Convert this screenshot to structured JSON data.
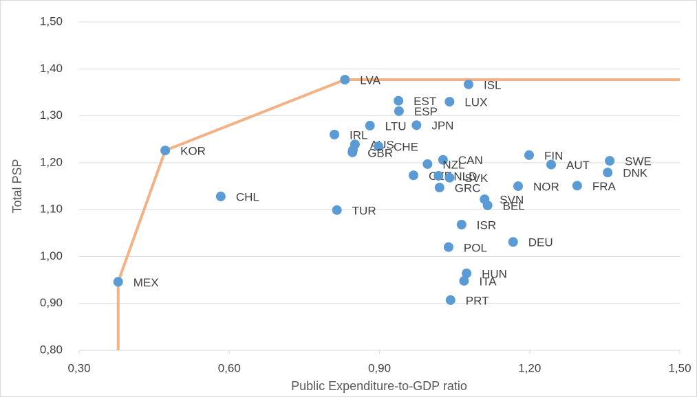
{
  "chart_data": {
    "type": "scatter",
    "x_label": "Public Expenditure-to-GDP ratio",
    "y_label": "Total PSP",
    "xlim": [
      0.3,
      1.5
    ],
    "ylim": [
      0.8,
      1.5
    ],
    "xticks": [
      {
        "value": 0.3,
        "label": "0,30"
      },
      {
        "value": 0.6,
        "label": "0,60"
      },
      {
        "value": 0.9,
        "label": "0,90"
      },
      {
        "value": 1.2,
        "label": "1,20"
      },
      {
        "value": 1.5,
        "label": "1,50"
      }
    ],
    "yticks": [
      {
        "value": 0.8,
        "label": "0,80"
      },
      {
        "value": 0.9,
        "label": "0,90"
      },
      {
        "value": 1.0,
        "label": "1,00"
      },
      {
        "value": 1.1,
        "label": "1,10"
      },
      {
        "value": 1.2,
        "label": "1,20"
      },
      {
        "value": 1.3,
        "label": "1,30"
      },
      {
        "value": 1.4,
        "label": "1,40"
      },
      {
        "value": 1.5,
        "label": "1,50"
      }
    ],
    "grid": true,
    "points": {
      "color": "#5b9bd5",
      "labels": [
        "MEX",
        "KOR",
        "CHL",
        "LVA",
        "ISL",
        "EST",
        "LUX",
        "ESP",
        "LTU",
        "JPN",
        "IRL",
        "AUS",
        "CHE",
        "GBR",
        null,
        "FIN",
        "SWE",
        "AUT",
        "DNK",
        "CAN",
        "NZL",
        "CZE",
        "NLD",
        "SVK",
        "GRC",
        "NOR",
        "FRA",
        "SVN",
        "BEL",
        "TUR",
        "ISR",
        "DEU",
        "POL",
        "HUN",
        "ITA",
        "PRT"
      ],
      "x": [
        0.378,
        0.472,
        0.583,
        0.831,
        1.078,
        0.938,
        1.04,
        0.939,
        0.881,
        0.974,
        0.81,
        0.851,
        0.898,
        0.846,
        0.847,
        1.199,
        1.36,
        1.243,
        1.356,
        1.027,
        0.996,
        0.968,
        1.018,
        1.04,
        1.02,
        1.177,
        1.295,
        1.11,
        1.116,
        0.815,
        1.064,
        1.167,
        1.038,
        1.074,
        1.069,
        1.042
      ],
      "y": [
        0.946,
        1.226,
        1.128,
        1.377,
        1.367,
        1.332,
        1.33,
        1.31,
        1.279,
        1.28,
        1.26,
        1.239,
        1.235,
        1.222,
        1.227,
        1.216,
        1.204,
        1.196,
        1.179,
        1.206,
        1.197,
        1.173,
        1.172,
        1.168,
        1.147,
        1.15,
        1.151,
        1.122,
        1.109,
        1.099,
        1.068,
        1.031,
        1.02,
        0.964,
        0.948,
        0.907
      ]
    },
    "frontier": {
      "color": "#f4b183",
      "x": [
        0.378,
        0.378,
        0.472,
        0.831,
        1.5
      ],
      "y": [
        0.8,
        0.946,
        1.226,
        1.377,
        1.377
      ]
    }
  }
}
